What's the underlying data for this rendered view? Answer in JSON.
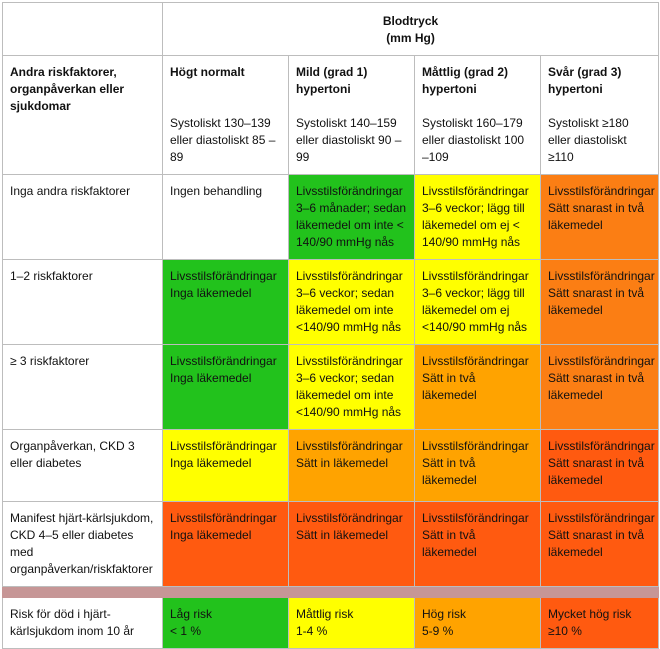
{
  "header": {
    "title_line1": "Blodtryck",
    "title_line2": "(mm Hg)",
    "row_label": "Andra riskfaktorer, organpåverkan eller sjukdomar",
    "columns": [
      {
        "name": "Högt normalt",
        "range": "Systoliskt 130–139 eller diastoliskt 85 –89"
      },
      {
        "name": "Mild (grad 1) hypertoni",
        "range": "Systoliskt 140–159 eller diastoliskt 90 –99"
      },
      {
        "name": "Måttlig (grad 2) hypertoni",
        "range": "Systoliskt 160–179 eller diastoliskt 100 –109"
      },
      {
        "name": "Svår (grad 3) hypertoni",
        "range": "Systoliskt ≥180 eller diastoliskt ≥110"
      }
    ]
  },
  "rows": [
    {
      "label": "Inga andra riskfaktorer",
      "cells": [
        {
          "l1": "Ingen behandling",
          "l2": ""
        },
        {
          "l1": "Livsstilsförändringar 3–6 månader; sedan läkemedel om inte < 140/90 mmHg nås",
          "l2": ""
        },
        {
          "l1": "Livsstilsförändringar 3–6 veckor; lägg till läkemedel om ej < 140/90 mmHg nås",
          "l2": ""
        },
        {
          "l1": "Livsstilsförändringar",
          "l2": "Sätt snarast in två läkemedel"
        }
      ]
    },
    {
      "label": "1–2 riskfaktorer",
      "cells": [
        {
          "l1": "Livsstilsförändringar",
          "l2": "Inga läkemedel"
        },
        {
          "l1": "Livsstilsförändringar 3–6 veckor; sedan läkemedel om inte <140/90 mmHg nås",
          "l2": ""
        },
        {
          "l1": "Livsstilsförändringar 3–6 veckor; lägg till läkemedel om ej <140/90 mmHg nås",
          "l2": ""
        },
        {
          "l1": "Livsstilsförändringar",
          "l2": "Sätt snarast in två läkemedel"
        }
      ]
    },
    {
      "label": "≥ 3 riskfaktorer",
      "cells": [
        {
          "l1": "Livsstilsförändringar",
          "l2": "Inga läkemedel"
        },
        {
          "l1": "Livsstilsförändringar 3–6 veckor; sedan läkemedel om inte <140/90 mmHg nås",
          "l2": ""
        },
        {
          "l1": "Livsstilsförändringar",
          "l2": "Sätt in två läkemedel"
        },
        {
          "l1": "Livsstilsförändringar",
          "l2": "Sätt snarast in två läkemedel"
        }
      ]
    },
    {
      "label": "Organpåverkan, CKD 3 eller diabetes",
      "cells": [
        {
          "l1": "Livsstilsförändringar",
          "l2": "Inga läkemedel"
        },
        {
          "l1": "Livsstilsförändringar",
          "l2": "Sätt in läkemedel"
        },
        {
          "l1": "Livsstilsförändringar",
          "l2": "Sätt in två läkemedel"
        },
        {
          "l1": "Livsstilsförändringar",
          "l2": "Sätt snarast in två läkemedel"
        }
      ]
    },
    {
      "label": "Manifest hjärt-kärlsjukdom, CKD 4–5 eller diabetes med organpåverkan/riskfaktorer",
      "cells": [
        {
          "l1": "Livsstilsförändringar",
          "l2": "Inga läkemedel"
        },
        {
          "l1": "Livsstilsförändringar",
          "l2": "Sätt in läkemedel"
        },
        {
          "l1": "Livsstilsförändringar",
          "l2": "Sätt in två läkemedel"
        },
        {
          "l1": "Livsstilsförändringar",
          "l2": "Sätt snarast in två läkemedel"
        }
      ]
    }
  ],
  "risk_row": {
    "label": "Risk för död i hjärt-kärlsjukdom inom 10 år",
    "cells": [
      {
        "l1": "Låg risk",
        "l2": "< 1 %"
      },
      {
        "l1": "Måttlig risk",
        "l2": "1-4 %"
      },
      {
        "l1": "Hög risk",
        "l2": "5-9 %"
      },
      {
        "l1": "Mycket hög risk",
        "l2": "≥10 %"
      }
    ]
  },
  "colors": {
    "white": "#ffffff",
    "green": "#22c21c",
    "yellow": "#ffff00",
    "orange": "#ffa300",
    "red": "#ff5a10",
    "separator": "#c69696"
  }
}
